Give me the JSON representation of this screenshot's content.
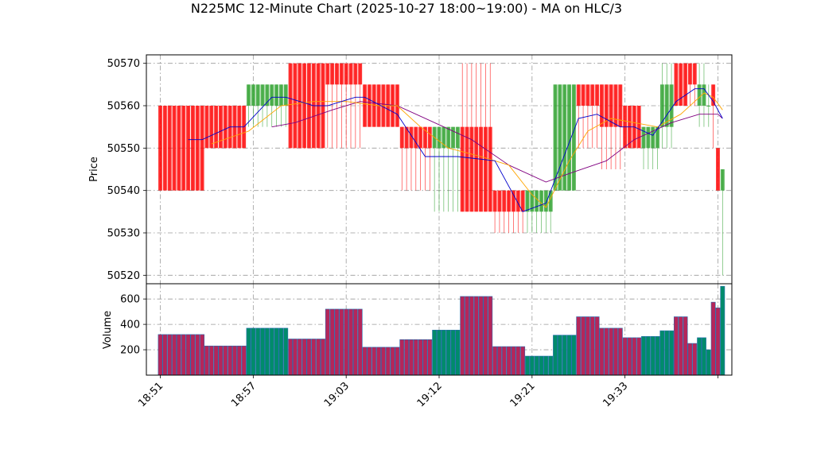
{
  "chart_data": {
    "type": "candlestick",
    "title": "N225MC 12-Minute Chart (2025-10-27 18:00~19:00) - MA on HLC/3",
    "ylabel_price": "Price",
    "ylabel_volume": "Volume",
    "price_ylim": [
      50518,
      50572
    ],
    "price_yticks": [
      50520,
      50530,
      50540,
      50550,
      50560,
      50570
    ],
    "volume_ylim": [
      0,
      720
    ],
    "volume_yticks": [
      200,
      400,
      600
    ],
    "x_index_range": [
      -3,
      123
    ],
    "xticks": [
      {
        "idx": 0,
        "label": "18:51"
      },
      {
        "idx": 20,
        "label": "18:57"
      },
      {
        "idx": 40,
        "label": "19:03"
      },
      {
        "idx": 60,
        "label": "19:12"
      },
      {
        "idx": 80,
        "label": "19:21"
      },
      {
        "idx": 100,
        "label": "19:33"
      },
      {
        "idx": 120,
        "label": ""
      }
    ],
    "colors": {
      "up": "#2ca02c",
      "down": "#ff0000",
      "ma_fast": "#0000cc",
      "ma_mid": "#ffa500",
      "ma_slow": "#800080",
      "volume_up": "#008b6b",
      "volume_down": "#b5265a",
      "volume_edge": "#2a6fb0"
    },
    "segments": [
      {
        "start": 0,
        "end": 9,
        "open": 50560,
        "high": 50560,
        "low": 50540,
        "close": 50540,
        "volume": 320
      },
      {
        "start": 10,
        "end": 18,
        "open": 50560,
        "high": 50560,
        "low": 50550,
        "close": 50550,
        "volume": 230
      },
      {
        "start": 19,
        "end": 27,
        "open": 50560,
        "high": 50565,
        "low": 50555,
        "close": 50565,
        "volume": 370
      },
      {
        "start": 28,
        "end": 35,
        "open": 50570,
        "high": 50570,
        "low": 50550,
        "close": 50550,
        "volume": 285
      },
      {
        "start": 36,
        "end": 43,
        "open": 50570,
        "high": 50570,
        "low": 50550,
        "close": 50565,
        "volume": 520
      },
      {
        "start": 44,
        "end": 51,
        "open": 50565,
        "high": 50565,
        "low": 50555,
        "close": 50555,
        "volume": 220
      },
      {
        "start": 52,
        "end": 58,
        "open": 50555,
        "high": 50555,
        "low": 50540,
        "close": 50550,
        "volume": 280
      },
      {
        "start": 59,
        "end": 64,
        "open": 50550,
        "high": 50555,
        "low": 50535,
        "close": 50555,
        "volume": 355
      },
      {
        "start": 65,
        "end": 71,
        "open": 50555,
        "high": 50570,
        "low": 50535,
        "close": 50535,
        "volume": 620
      },
      {
        "start": 72,
        "end": 78,
        "open": 50540,
        "high": 50540,
        "low": 50530,
        "close": 50535,
        "volume": 225
      },
      {
        "start": 79,
        "end": 84,
        "open": 50535,
        "high": 50540,
        "low": 50530,
        "close": 50540,
        "volume": 150
      },
      {
        "start": 85,
        "end": 89,
        "open": 50540,
        "high": 50565,
        "low": 50540,
        "close": 50565,
        "volume": 315
      },
      {
        "start": 90,
        "end": 94,
        "open": 50565,
        "high": 50565,
        "low": 50550,
        "close": 50560,
        "volume": 460
      },
      {
        "start": 95,
        "end": 99,
        "open": 50565,
        "high": 50565,
        "low": 50545,
        "close": 50555,
        "volume": 370
      },
      {
        "start": 100,
        "end": 103,
        "open": 50560,
        "high": 50560,
        "low": 50550,
        "close": 50550,
        "volume": 295
      },
      {
        "start": 104,
        "end": 107,
        "open": 50550,
        "high": 50555,
        "low": 50545,
        "close": 50555,
        "volume": 305
      },
      {
        "start": 108,
        "end": 110,
        "open": 50555,
        "high": 50570,
        "low": 50550,
        "close": 50565,
        "volume": 350
      },
      {
        "start": 111,
        "end": 113,
        "open": 50570,
        "high": 50570,
        "low": 50560,
        "close": 50560,
        "volume": 460
      },
      {
        "start": 114,
        "end": 115,
        "open": 50570,
        "high": 50570,
        "low": 50560,
        "close": 50565,
        "volume": 250
      },
      {
        "start": 116,
        "end": 117,
        "open": 50560,
        "high": 50570,
        "low": 50555,
        "close": 50565,
        "volume": 295
      },
      {
        "start": 118,
        "end": 118,
        "open": 50560,
        "high": 50565,
        "low": 50555,
        "close": 50560,
        "volume": 200
      },
      {
        "start": 119,
        "end": 119,
        "open": 50565,
        "high": 50565,
        "low": 50550,
        "close": 50560,
        "volume": 575
      },
      {
        "start": 120,
        "end": 120,
        "open": 50550,
        "high": 50550,
        "low": 50540,
        "close": 50540,
        "volume": 530
      },
      {
        "start": 121,
        "end": 121,
        "open": 50540,
        "high": 50545,
        "low": 50520,
        "close": 50545,
        "volume": 700
      }
    ],
    "ma_fast": [
      [
        6,
        50552
      ],
      [
        9,
        50552
      ],
      [
        15,
        50555
      ],
      [
        18,
        50555
      ],
      [
        24,
        50562
      ],
      [
        27,
        50562
      ],
      [
        33,
        50560
      ],
      [
        36,
        50560
      ],
      [
        42,
        50562
      ],
      [
        44,
        50562
      ],
      [
        51,
        50558
      ],
      [
        57,
        50548
      ],
      [
        64,
        50548
      ],
      [
        72,
        50547
      ],
      [
        78,
        50535
      ],
      [
        83,
        50537
      ],
      [
        90,
        50557
      ],
      [
        94,
        50558
      ],
      [
        99,
        50555
      ],
      [
        102,
        50555
      ],
      [
        106,
        50553
      ],
      [
        111,
        50561
      ],
      [
        115,
        50564
      ],
      [
        117,
        50564
      ],
      [
        119,
        50561
      ],
      [
        121,
        50557
      ]
    ],
    "ma_mid": [
      [
        11,
        50551
      ],
      [
        19,
        50554
      ],
      [
        26,
        50560
      ],
      [
        33,
        50561
      ],
      [
        40,
        50561
      ],
      [
        47,
        50560
      ],
      [
        51,
        50560
      ],
      [
        56,
        50555
      ],
      [
        62,
        50550
      ],
      [
        69,
        50548
      ],
      [
        75,
        50546
      ],
      [
        80,
        50539
      ],
      [
        83,
        50536
      ],
      [
        88,
        50547
      ],
      [
        92,
        50554
      ],
      [
        97,
        50557
      ],
      [
        102,
        50556
      ],
      [
        107,
        50555
      ],
      [
        112,
        50558
      ],
      [
        117,
        50563
      ],
      [
        119,
        50562
      ],
      [
        121,
        50559
      ]
    ],
    "ma_slow": [
      [
        24,
        50555
      ],
      [
        29,
        50556
      ],
      [
        37,
        50559
      ],
      [
        43,
        50561
      ],
      [
        51,
        50560
      ],
      [
        59,
        50556
      ],
      [
        67,
        50552
      ],
      [
        75,
        50546
      ],
      [
        83,
        50542
      ],
      [
        88,
        50544
      ],
      [
        96,
        50547
      ],
      [
        102,
        50552
      ],
      [
        110,
        50556
      ],
      [
        116,
        50558
      ],
      [
        120,
        50558
      ],
      [
        121,
        50557
      ]
    ]
  }
}
